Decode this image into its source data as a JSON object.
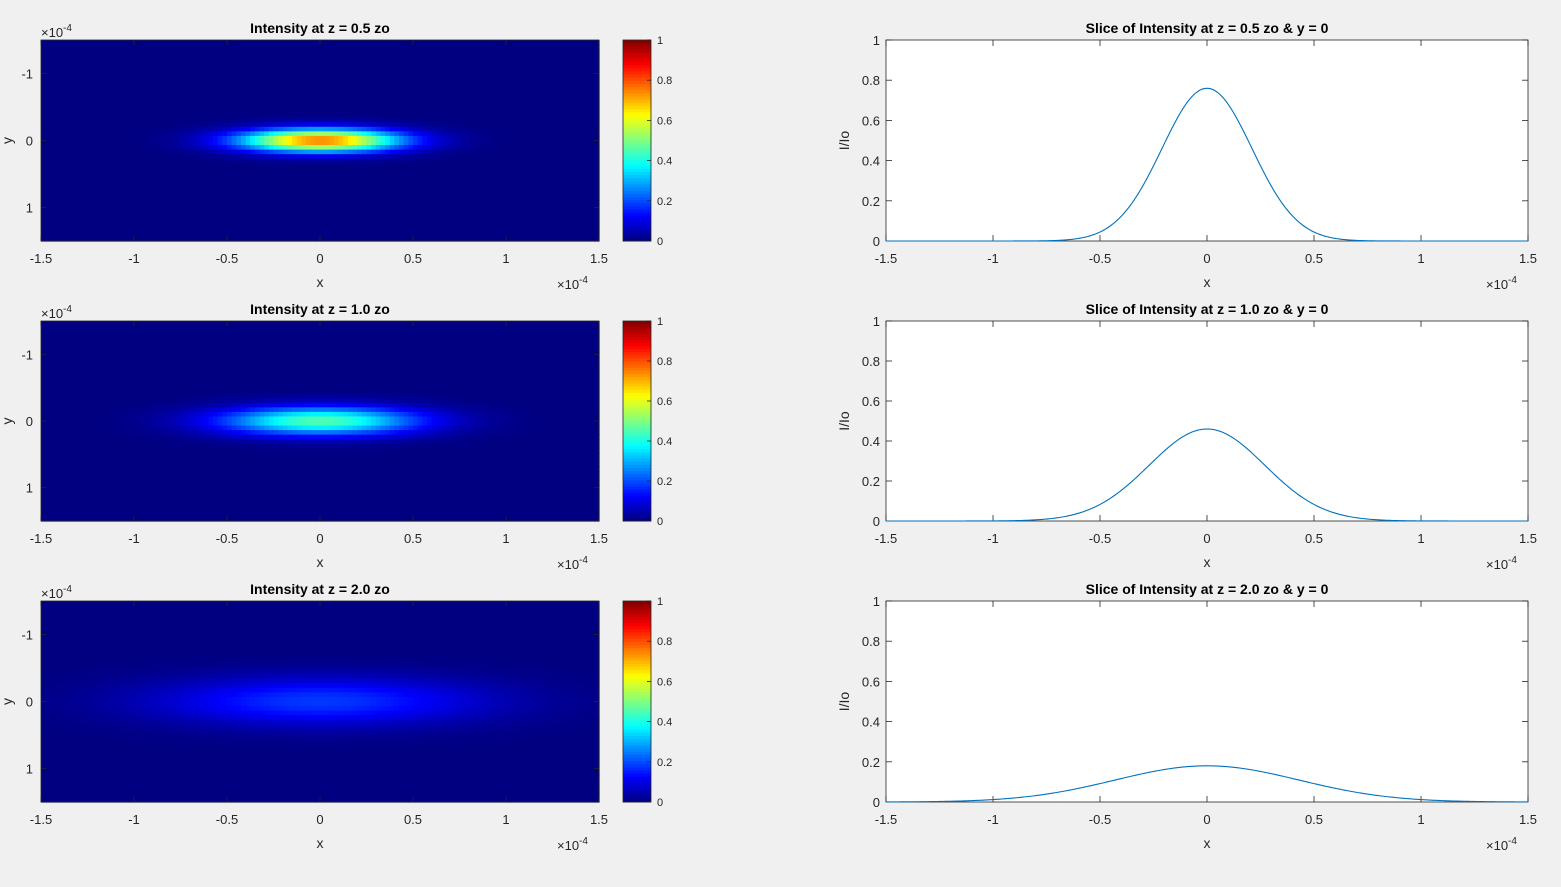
{
  "chart_data": [
    {
      "type": "heatmap",
      "title": "Intensity at z = 0.5 zo",
      "xlabel": "x",
      "ylabel": "y",
      "xlim": [
        -1.5,
        1.5
      ],
      "ylim": [
        -1.5,
        1.5
      ],
      "axis_multiplier": "×10^-4",
      "x_ticks": [
        "-1.5",
        "-1",
        "-0.5",
        "0",
        "0.5",
        "1",
        "1.5"
      ],
      "y_ticks": [
        "-1",
        "0",
        "1"
      ],
      "y_direction": "reversed",
      "colormap": "jet",
      "clim": [
        0,
        1
      ],
      "colorbar_ticks": [
        "0",
        "0.2",
        "0.4",
        "0.6",
        "0.8",
        "1"
      ],
      "peak_intensity": 0.76,
      "beam_width_x": 0.305,
      "beam_width_y": 0.12,
      "axis_multiplier_base": "×10",
      "axis_multiplier_exp": "-4"
    },
    {
      "type": "heatmap",
      "title": "Intensity at z = 1.0 zo",
      "xlabel": "x",
      "ylabel": "y",
      "xlim": [
        -1.5,
        1.5
      ],
      "ylim": [
        -1.5,
        1.5
      ],
      "axis_multiplier": "×10^-4",
      "x_ticks": [
        "-1.5",
        "-1",
        "-0.5",
        "0",
        "0.5",
        "1",
        "1.5"
      ],
      "y_ticks": [
        "-1",
        "0",
        "1"
      ],
      "y_direction": "reversed",
      "colormap": "jet",
      "clim": [
        0,
        1
      ],
      "colorbar_ticks": [
        "0",
        "0.2",
        "0.4",
        "0.6",
        "0.8",
        "1"
      ],
      "peak_intensity": 0.46,
      "beam_width_x": 0.38,
      "beam_width_y": 0.15,
      "axis_multiplier_base": "×10",
      "axis_multiplier_exp": "-4"
    },
    {
      "type": "heatmap",
      "title": "Intensity at z = 2.0 zo",
      "xlabel": "x",
      "ylabel": "y",
      "xlim": [
        -1.5,
        1.5
      ],
      "ylim": [
        -1.5,
        1.5
      ],
      "axis_multiplier": "×10^-4",
      "x_ticks": [
        "-1.5",
        "-1",
        "-0.5",
        "0",
        "0.5",
        "1",
        "1.5"
      ],
      "y_ticks": [
        "-1",
        "0",
        "1"
      ],
      "y_direction": "reversed",
      "colormap": "jet",
      "clim": [
        0,
        1
      ],
      "colorbar_ticks": [
        "0",
        "0.2",
        "0.4",
        "0.6",
        "0.8",
        "1"
      ],
      "peak_intensity": 0.18,
      "beam_width_x": 0.62,
      "beam_width_y": 0.25,
      "axis_multiplier_base": "×10",
      "axis_multiplier_exp": "-4"
    },
    {
      "type": "line",
      "title": "Slice of Intensity at z = 0.5 zo & y = 0",
      "xlabel": "x",
      "ylabel": "I/Io",
      "xlim": [
        -1.5,
        1.5
      ],
      "ylim": [
        0,
        1
      ],
      "axis_multiplier": "×10^-4",
      "x_ticks": [
        "-1.5",
        "-1",
        "-0.5",
        "0",
        "0.5",
        "1",
        "1.5"
      ],
      "y_ticks": [
        "0",
        "0.2",
        "0.4",
        "0.6",
        "0.8",
        "1"
      ],
      "line_color": "#0072bd",
      "peak": 0.76,
      "width": 0.21,
      "axis_multiplier_base": "×10",
      "axis_multiplier_exp": "-4"
    },
    {
      "type": "line",
      "title": "Slice of Intensity at z = 1.0 zo & y = 0",
      "xlabel": "x",
      "ylabel": "I/Io",
      "xlim": [
        -1.5,
        1.5
      ],
      "ylim": [
        0,
        1
      ],
      "axis_multiplier": "×10^-4",
      "x_ticks": [
        "-1.5",
        "-1",
        "-0.5",
        "0",
        "0.5",
        "1",
        "1.5"
      ],
      "y_ticks": [
        "0",
        "0.2",
        "0.4",
        "0.6",
        "0.8",
        "1"
      ],
      "line_color": "#0072bd",
      "peak": 0.46,
      "width": 0.27,
      "axis_multiplier_base": "×10",
      "axis_multiplier_exp": "-4"
    },
    {
      "type": "line",
      "title": "Slice of Intensity at z = 2.0 zo & y = 0",
      "xlabel": "x",
      "ylabel": "I/Io",
      "xlim": [
        -1.5,
        1.5
      ],
      "ylim": [
        0,
        1
      ],
      "axis_multiplier": "×10^-4",
      "x_ticks": [
        "-1.5",
        "-1",
        "-0.5",
        "0",
        "0.5",
        "1",
        "1.5"
      ],
      "y_ticks": [
        "0",
        "0.2",
        "0.4",
        "0.6",
        "0.8",
        "1"
      ],
      "line_color": "#0072bd",
      "peak": 0.18,
      "width": 0.43,
      "axis_multiplier_base": "×10",
      "axis_multiplier_exp": "-4"
    }
  ]
}
